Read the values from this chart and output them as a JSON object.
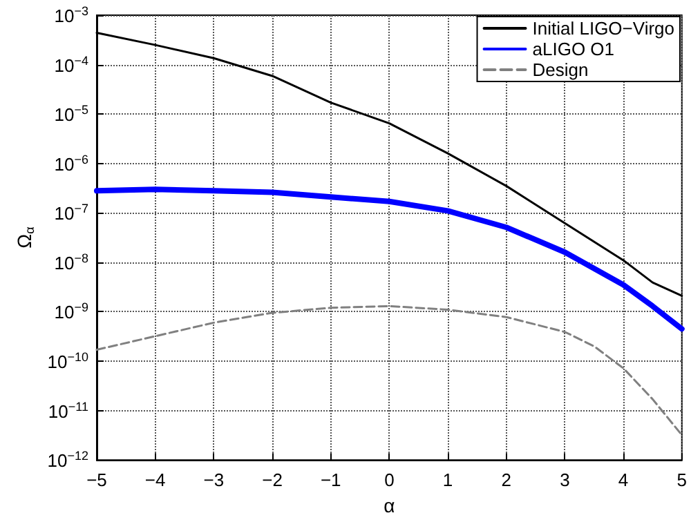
{
  "chart_data": {
    "type": "line",
    "xlabel": "α",
    "ylabel": "Ω$_{α}$",
    "log": "y",
    "grid": true,
    "legend": "top right",
    "marker": "none",
    "xlim": [
      -5,
      5
    ],
    "xticks": [
      {
        "value": -5,
        "label": "−5"
      },
      {
        "value": -4,
        "label": "−4"
      },
      {
        "value": -3,
        "label": "−3"
      },
      {
        "value": -2,
        "label": "−2"
      },
      {
        "value": -1,
        "label": "−1"
      },
      0,
      1,
      2,
      3,
      4,
      5
    ],
    "ylim": [
      1e-12,
      0.001
    ],
    "yticks": [
      {
        "value": 1e-12,
        "label": "10$^{−12}$"
      },
      {
        "value": 1e-11,
        "label": "10$^{−11}$"
      },
      {
        "value": 1e-10,
        "label": "10$^{−10}$"
      },
      {
        "value": 1e-09,
        "label": "10$^{−9}$"
      },
      {
        "value": 1e-08,
        "label": "10$^{−8}$"
      },
      {
        "value": 1e-07,
        "label": "10$^{−7}$"
      },
      {
        "value": 1e-06,
        "label": "10$^{−6}$"
      },
      {
        "value": 1e-05,
        "label": "10$^{−5}$"
      },
      {
        "value": 0.0001,
        "label": "10$^{−4}$"
      },
      {
        "value": 0.001,
        "label": "10$^{−3}$"
      }
    ],
    "series": [
      {
        "name": "Initial LIGO−Virgo",
        "color": "#000000",
        "line_style": "solid",
        "x": [
          -5,
          -4,
          -3,
          -2,
          -1,
          0,
          1,
          2,
          3,
          4,
          4.5,
          5
        ],
        "values": [
          0.00044,
          0.00025,
          0.000135,
          5.9e-05,
          1.7e-05,
          6.5e-06,
          1.6e-06,
          3.5e-07,
          6.2e-08,
          1.1e-08,
          3.9e-09,
          2.1e-09
        ]
      },
      {
        "name": "aLIGO O1",
        "color": "#0000ff",
        "line_style": "solid",
        "x": [
          -5,
          -4,
          -3,
          -2,
          -1,
          0,
          1,
          2,
          3,
          4,
          4.5,
          5
        ],
        "values": [
          2.8e-07,
          3e-07,
          2.8e-07,
          2.6e-07,
          2.1e-07,
          1.7e-07,
          1.1e-07,
          5.1e-08,
          1.6e-08,
          3.5e-09,
          1.3e-09,
          4.5e-10
        ]
      },
      {
        "name": "Design",
        "color": "#808080",
        "line_style": "dashed",
        "x": [
          -5,
          -4,
          -3,
          -2,
          -1,
          0,
          1,
          2,
          3,
          3.5,
          4,
          4.5,
          5
        ],
        "values": [
          1.7e-10,
          3.2e-10,
          6e-10,
          9.5e-10,
          1.2e-09,
          1.3e-09,
          1.1e-09,
          7.8e-10,
          3.9e-10,
          2e-10,
          7.2e-11,
          1.7e-11,
          3.2e-12
        ]
      }
    ]
  }
}
